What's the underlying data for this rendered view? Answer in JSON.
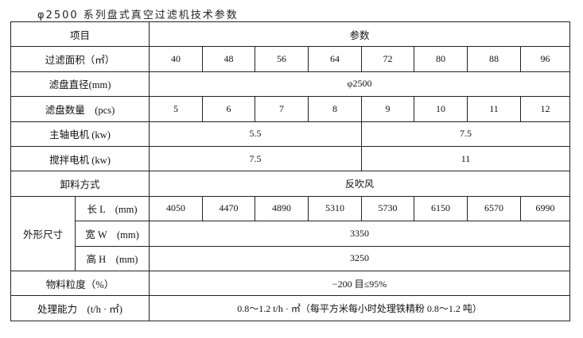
{
  "title": "φ2500 系列盘式真空过滤机技术参数",
  "header": {
    "item": "项目",
    "params": "参数"
  },
  "rows": {
    "area": {
      "label": "过滤面积（㎡）",
      "values": [
        "40",
        "48",
        "56",
        "64",
        "72",
        "80",
        "88",
        "96"
      ]
    },
    "diameter": {
      "label": "滤盘直径(mm)",
      "value": "φ2500"
    },
    "disc_count": {
      "label": "滤盘数量　(pcs)",
      "values": [
        "5",
        "6",
        "7",
        "8",
        "9",
        "10",
        "11",
        "12"
      ]
    },
    "main_motor": {
      "label": "主轴电机 (kw)",
      "values": [
        "5.5",
        "7.5"
      ]
    },
    "agitator_motor": {
      "label": "搅拌电机 (kw)",
      "values": [
        "7.5",
        "11"
      ]
    },
    "discharge": {
      "label": "卸料方式",
      "value": "反吹风"
    },
    "dimensions": {
      "label": "外形尺寸",
      "length": {
        "label": "长 L　(mm)",
        "values": [
          "4050",
          "4470",
          "4890",
          "5310",
          "5730",
          "6150",
          "6570",
          "6990"
        ]
      },
      "width": {
        "label": "宽 W　(mm)",
        "value": "3350"
      },
      "height": {
        "label": "高 H　(mm)",
        "value": "3250"
      }
    },
    "granularity": {
      "label": "物料粒度（%）",
      "value": "−200 目≤95%"
    },
    "capacity": {
      "label": "处理能力　(t/h · ㎡)",
      "value": "0.8～1.2 t/h · ㎡（每平方米每小时处理铁精粉 0.8～1.2 吨）"
    }
  }
}
